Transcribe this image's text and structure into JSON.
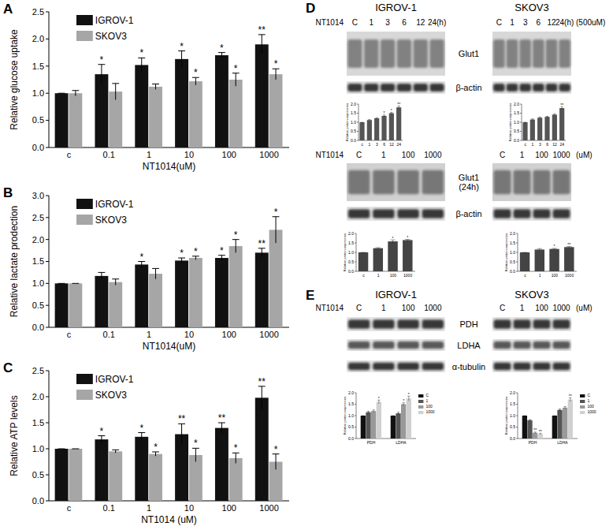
{
  "chart_data": [
    {
      "type": "bar",
      "panel": "A",
      "categories": [
        "c",
        "0.1",
        "1",
        "10",
        "100",
        "1000"
      ],
      "xlabel": "NT1014(uM)",
      "ylabel": "Relative glucose uptake",
      "ylim": [
        0,
        2.5
      ],
      "yticks": [
        {
          "value": 0,
          "label": "0.0"
        },
        {
          "value": 0.5,
          "label": "0.5"
        },
        {
          "value": 1,
          "label": "1.0"
        },
        {
          "value": 1.5,
          "label": "1.5"
        },
        {
          "value": 2,
          "label": "2.0"
        },
        {
          "value": 2.5,
          "label": "2.5"
        }
      ],
      "legend": "top-left",
      "series": [
        {
          "name": "IGROV-1",
          "color": "#111111",
          "values": [
            1,
            1.35,
            1.52,
            1.63,
            1.7,
            1.9
          ],
          "errors": [
            0,
            0.18,
            0.13,
            0.15,
            0.05,
            0.18
          ],
          "annotations": [
            null,
            "*",
            "*",
            "*",
            "*",
            "**"
          ]
        },
        {
          "name": "SKOV3",
          "color": "#a6a6a6",
          "values": [
            1,
            1.03,
            1.12,
            1.22,
            1.25,
            1.35
          ],
          "errors": [
            0.05,
            0.15,
            0.05,
            0.07,
            0.12,
            0.1
          ],
          "annotations": [
            null,
            null,
            null,
            "*",
            "*",
            "*"
          ]
        }
      ]
    },
    {
      "type": "bar",
      "panel": "B",
      "categories": [
        "c",
        "0.1",
        "1",
        "10",
        "100",
        "1000"
      ],
      "xlabel": "NT1014(uM)",
      "ylabel": "Relative lactate prodection",
      "ylim": [
        0,
        3
      ],
      "yticks": [
        {
          "value": 0,
          "label": "0.0"
        },
        {
          "value": 0.5,
          "label": "0.5"
        },
        {
          "value": 1,
          "label": "1.0"
        },
        {
          "value": 1.5,
          "label": "1.5"
        },
        {
          "value": 2,
          "label": "2.0"
        },
        {
          "value": 2.5,
          "label": "2.5"
        },
        {
          "value": 3,
          "label": "3.0"
        }
      ],
      "legend": "top-left",
      "series": [
        {
          "name": "IGROV-1",
          "color": "#111111",
          "values": [
            1,
            1.17,
            1.43,
            1.52,
            1.58,
            1.7
          ],
          "errors": [
            0,
            0.08,
            0.07,
            0.06,
            0.06,
            0.1
          ],
          "annotations": [
            null,
            null,
            "*",
            "*",
            "*",
            "**"
          ]
        },
        {
          "name": "SKOV3",
          "color": "#a6a6a6",
          "values": [
            1,
            1.03,
            1.22,
            1.58,
            1.85,
            2.22
          ],
          "errors": [
            0,
            0.07,
            0.12,
            0.04,
            0.15,
            0.3
          ],
          "annotations": [
            null,
            null,
            null,
            "*",
            "*",
            "*"
          ]
        }
      ]
    },
    {
      "type": "bar",
      "panel": "C",
      "categories": [
        "c",
        "0.1",
        "1",
        "10",
        "100",
        "1000"
      ],
      "xlabel": "NT1014 (uM)",
      "ylabel": "Relative ATP levels",
      "ylim": [
        0,
        2.5
      ],
      "yticks": [
        {
          "value": 0,
          "label": "0.0"
        },
        {
          "value": 0.5,
          "label": "0.5"
        },
        {
          "value": 1,
          "label": "1.0"
        },
        {
          "value": 1.5,
          "label": "1.5"
        },
        {
          "value": 2,
          "label": "2.0"
        },
        {
          "value": 2.5,
          "label": "2.5"
        }
      ],
      "legend": "top-left",
      "series": [
        {
          "name": "IGROV-1",
          "color": "#111111",
          "values": [
            1,
            1.18,
            1.23,
            1.28,
            1.4,
            1.98
          ],
          "errors": [
            0,
            0.07,
            0.08,
            0.2,
            0.1,
            0.22
          ],
          "annotations": [
            null,
            "*",
            "*",
            "**",
            "**",
            "**"
          ]
        },
        {
          "name": "SKOV3",
          "color": "#a6a6a6",
          "values": [
            1,
            0.95,
            0.9,
            0.88,
            0.82,
            0.75
          ],
          "errors": [
            0,
            0.03,
            0.04,
            0.13,
            0.1,
            0.15
          ],
          "annotations": [
            null,
            null,
            "*",
            "*",
            "*",
            "*"
          ]
        }
      ]
    },
    {
      "type": "bar",
      "categories": [
        "c",
        "1",
        "3",
        "6",
        "12",
        "24"
      ],
      "ylabel": "Relative protein expression",
      "ylim": [
        0,
        2
      ],
      "yticks": [
        {
          "value": 0,
          "label": "0.0"
        },
        {
          "value": 0.5,
          "label": "0.5"
        },
        {
          "value": 1,
          "label": "1.0"
        },
        {
          "value": 1.5,
          "label": "1.5"
        },
        {
          "value": 2,
          "label": "2.0"
        }
      ],
      "color": "#555555",
      "values": [
        1,
        1.12,
        1.22,
        1.35,
        1.5,
        1.82
      ],
      "errors": [
        0,
        0.03,
        0.03,
        0.05,
        0.05,
        0.08
      ],
      "annotations": [
        null,
        null,
        null,
        "*",
        "*",
        "**"
      ]
    },
    {
      "type": "bar",
      "categories": [
        "c",
        "1",
        "3",
        "6",
        "12",
        "24"
      ],
      "ylabel": "Relative protein expression",
      "ylim": [
        0,
        2
      ],
      "yticks": [
        {
          "value": 0,
          "label": "0.0"
        },
        {
          "value": 0.5,
          "label": "0.5"
        },
        {
          "value": 1,
          "label": "1.0"
        },
        {
          "value": 1.5,
          "label": "1.5"
        },
        {
          "value": 2,
          "label": "2.0"
        }
      ],
      "color": "#555555",
      "values": [
        1,
        1.15,
        1.25,
        1.3,
        1.42,
        1.78
      ],
      "errors": [
        0,
        0.04,
        0.04,
        0.03,
        0.05,
        0.08
      ],
      "annotations": [
        null,
        null,
        null,
        null,
        null,
        "**"
      ]
    },
    {
      "type": "bar",
      "categories": [
        "c",
        "1",
        "100",
        "1000"
      ],
      "ylabel": "Relative protein expression",
      "ylim": [
        0,
        2
      ],
      "yticks": [
        {
          "value": 0,
          "label": "0.0"
        },
        {
          "value": 0.5,
          "label": "0.5"
        },
        {
          "value": 1,
          "label": "1.0"
        },
        {
          "value": 1.5,
          "label": "1.5"
        },
        {
          "value": 2,
          "label": "2.0"
        }
      ],
      "color": "#444444",
      "values": [
        1,
        1.22,
        1.58,
        1.65
      ],
      "errors": [
        0,
        0.03,
        0.08,
        0.04
      ],
      "annotations": [
        null,
        null,
        "*",
        "*"
      ]
    },
    {
      "type": "bar",
      "categories": [
        "c",
        "1",
        "100",
        "1000"
      ],
      "ylabel": "Relative protein expression",
      "ylim": [
        0,
        2
      ],
      "yticks": [
        {
          "value": 0,
          "label": "0.0"
        },
        {
          "value": 0.5,
          "label": "0.5"
        },
        {
          "value": 1,
          "label": "1.0"
        },
        {
          "value": 1.5,
          "label": "1.5"
        },
        {
          "value": 2,
          "label": "2.0"
        }
      ],
      "color": "#444444",
      "values": [
        1,
        1.15,
        1.18,
        1.28
      ],
      "errors": [
        0,
        0.05,
        0.03,
        0.03
      ],
      "annotations": [
        null,
        null,
        "*",
        "**"
      ]
    },
    {
      "type": "bar",
      "categories": [
        "PDH",
        "LDHA"
      ],
      "ylabel": "Relative protein expression",
      "ylim": [
        0,
        2
      ],
      "yticks": [
        {
          "value": 0,
          "label": "0.0"
        },
        {
          "value": 0.5,
          "label": "0.5"
        },
        {
          "value": 1,
          "label": "1.0"
        },
        {
          "value": 1.5,
          "label": "1.5"
        },
        {
          "value": 2,
          "label": "2.0"
        }
      ],
      "legend": "right",
      "series": [
        {
          "name": "C",
          "color": "#111111",
          "values": [
            1,
            1
          ],
          "errors": [
            0,
            0
          ]
        },
        {
          "name": "1",
          "color": "#555555",
          "values": [
            1.15,
            1.1
          ],
          "errors": [
            0.04,
            0.05
          ]
        },
        {
          "name": "100",
          "color": "#999999",
          "values": [
            1.2,
            1.5
          ],
          "errors": [
            0.05,
            0.06
          ],
          "annotations": [
            null,
            "*"
          ]
        },
        {
          "name": "1000",
          "color": "#d0d0d0",
          "values": [
            1.6,
            1.75
          ],
          "errors": [
            0.08,
            0.1
          ],
          "annotations": [
            "*",
            "*"
          ]
        }
      ]
    },
    {
      "type": "bar",
      "categories": [
        "PDH",
        "LDHA"
      ],
      "ylabel": "Relative protein expression",
      "ylim": [
        0,
        2
      ],
      "yticks": [
        {
          "value": 0,
          "label": "0.0"
        },
        {
          "value": 0.5,
          "label": "0.5"
        },
        {
          "value": 1,
          "label": "1.0"
        },
        {
          "value": 1.5,
          "label": "1.5"
        },
        {
          "value": 2,
          "label": "2.0"
        }
      ],
      "legend": "right",
      "series": [
        {
          "name": "C",
          "color": "#111111",
          "values": [
            1,
            1
          ],
          "errors": [
            0,
            0
          ]
        },
        {
          "name": "1",
          "color": "#555555",
          "values": [
            0.8,
            1.25
          ],
          "errors": [
            0.03,
            0.04
          ]
        },
        {
          "name": "100",
          "color": "#999999",
          "values": [
            0.25,
            1.35
          ],
          "errors": [
            0.03,
            0.05
          ],
          "annotations": [
            "**",
            null
          ]
        },
        {
          "name": "1000",
          "color": "#d0d0d0",
          "values": [
            0.2,
            1.7
          ],
          "errors": [
            0.03,
            0.08
          ],
          "annotations": [
            "**",
            "**"
          ]
        }
      ]
    }
  ],
  "blots": [
    {
      "panel": "D",
      "cell_lines": [
        "IGROV-1",
        "SKOV3"
      ],
      "treatment": "NT1014",
      "lanes": [
        "C",
        "1",
        "3",
        "6",
        "12",
        "24(h)"
      ],
      "unit": "(500uM)",
      "rows": [
        [
          "Glut1"
        ],
        [
          "β-actin"
        ]
      ]
    },
    {
      "treatment": "NT1014",
      "lanes": [
        "C",
        "1",
        "100",
        "1000"
      ],
      "unit": "(uM)",
      "rows": [
        [
          "Glut1",
          "(24h)"
        ],
        [
          "β-actin"
        ]
      ]
    },
    {
      "panel": "E",
      "cell_lines": [
        "IGROV-1",
        "SKOV3"
      ],
      "treatment": "NT1014",
      "lanes": [
        "C",
        "1",
        "100",
        "1000"
      ],
      "unit": "(uM)",
      "rows": [
        [
          "PDH"
        ],
        [
          "LDHA"
        ],
        [
          "α-tubulin"
        ]
      ]
    }
  ]
}
